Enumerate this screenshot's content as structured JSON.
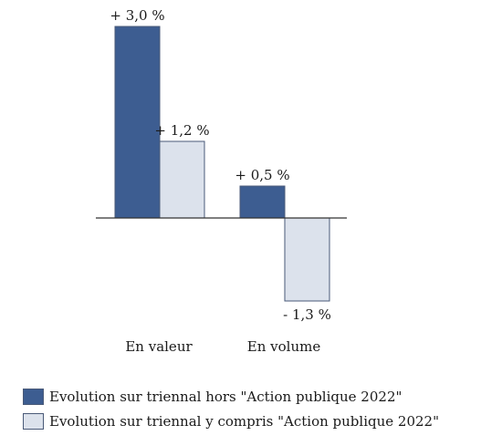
{
  "chart_data": {
    "type": "bar",
    "categories": [
      "En valeur",
      "En volume"
    ],
    "series": [
      {
        "name": "Evolution sur triennal hors \"Action publique 2022\"",
        "values": [
          3.0,
          0.5
        ],
        "labels": [
          "+ 3,0 %",
          "+ 0,5 %"
        ],
        "color": "#3d5d91"
      },
      {
        "name": "Evolution sur triennal y compris \"Action publique 2022\"",
        "values": [
          1.2,
          -1.3
        ],
        "labels": [
          "+ 1,2 %",
          "- 1,3 %"
        ],
        "color": "#dce2ec"
      }
    ],
    "grid": false,
    "legend": "bottom"
  }
}
